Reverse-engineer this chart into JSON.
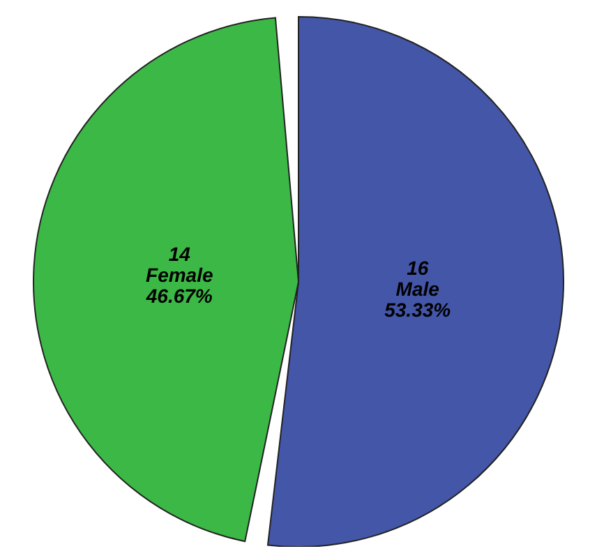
{
  "chart_data": {
    "type": "pie",
    "categories": [
      "Male",
      "Female"
    ],
    "values": [
      53.33,
      46.67
    ],
    "colors": [
      "#4356a8",
      "#3cb846"
    ],
    "value_labels": [
      "53.33%",
      "46.67%"
    ],
    "annotations": [
      {
        "text": "16",
        "x": "Male"
      },
      {
        "text": "14",
        "x": "Female"
      }
    ]
  }
}
